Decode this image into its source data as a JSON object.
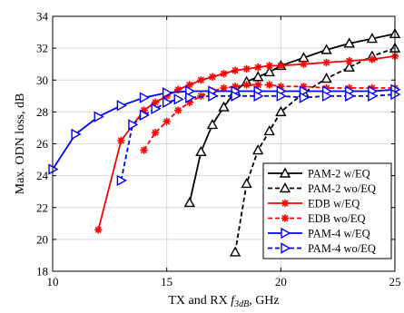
{
  "chart_data": {
    "type": "line",
    "title": "",
    "xlabel": {
      "main": "TX and RX ",
      "italic": "f",
      "sub": "3dB",
      "suffix": ", GHz"
    },
    "ylabel": "Max. ODN loss, dB",
    "xlim": [
      10,
      25
    ],
    "ylim": [
      18,
      34
    ],
    "xticks": [
      10,
      15,
      20,
      25
    ],
    "yticks": [
      18,
      20,
      22,
      24,
      26,
      28,
      30,
      32,
      34
    ],
    "xtick_labels": [
      "10",
      "15",
      "20",
      "25"
    ],
    "ytick_labels": [
      "18",
      "20",
      "22",
      "24",
      "26",
      "28",
      "30",
      "32",
      "34"
    ],
    "grid": true,
    "legend_position": "bottom-right",
    "series": [
      {
        "name": "PAM-2 w/EQ",
        "color": "#000000",
        "dash": "solid",
        "marker": "triangle-up",
        "x": [
          16,
          16.5,
          17,
          17.5,
          18,
          18.5,
          19,
          19.5,
          20,
          21,
          22,
          23,
          24,
          25
        ],
        "y": [
          22.3,
          25.5,
          27.2,
          28.3,
          29.3,
          29.9,
          30.2,
          30.5,
          30.9,
          31.4,
          31.9,
          32.3,
          32.6,
          32.9
        ]
      },
      {
        "name": "PAM-2 wo/EQ",
        "color": "#000000",
        "dash": "dashed",
        "marker": "triangle-up",
        "x": [
          18,
          18.5,
          19,
          19.5,
          20,
          21,
          22,
          23,
          24,
          25
        ],
        "y": [
          19.2,
          23.5,
          25.6,
          26.8,
          28.0,
          29.2,
          30.1,
          30.8,
          31.5,
          32.0
        ]
      },
      {
        "name": "EDB w/EQ",
        "color": "#ff0000",
        "dash": "solid",
        "marker": "asterisk",
        "x": [
          12,
          13,
          14,
          14.5,
          15,
          15.5,
          16,
          16.5,
          17,
          17.5,
          18,
          18.5,
          19,
          19.5,
          20,
          21,
          22,
          23,
          24,
          25
        ],
        "y": [
          20.6,
          26.2,
          28.1,
          28.6,
          29.0,
          29.4,
          29.7,
          30.0,
          30.2,
          30.4,
          30.6,
          30.7,
          30.8,
          30.9,
          30.9,
          31.0,
          31.1,
          31.2,
          31.3,
          31.5
        ]
      },
      {
        "name": "EDB wo/EQ",
        "color": "#ff0000",
        "dash": "dashed",
        "marker": "asterisk",
        "x": [
          14,
          14.5,
          15,
          15.5,
          16,
          16.5,
          17,
          17.5,
          18,
          18.5,
          19,
          19.5,
          20,
          21,
          22,
          23,
          24,
          25
        ],
        "y": [
          25.6,
          26.7,
          27.4,
          28.1,
          28.6,
          29.0,
          29.3,
          29.5,
          29.6,
          29.7,
          29.7,
          29.7,
          29.6,
          29.6,
          29.5,
          29.5,
          29.5,
          29.5
        ]
      },
      {
        "name": "PAM-4 w/EQ",
        "color": "#0000ff",
        "dash": "solid",
        "marker": "triangle-right",
        "x": [
          10,
          11,
          12,
          13,
          14,
          15,
          16,
          17,
          18,
          19,
          20,
          21,
          22,
          23,
          24,
          25
        ],
        "y": [
          24.4,
          26.6,
          27.7,
          28.4,
          28.9,
          29.2,
          29.3,
          29.3,
          29.3,
          29.3,
          29.3,
          29.3,
          29.3,
          29.3,
          29.3,
          29.4
        ]
      },
      {
        "name": "PAM-4 wo/EQ",
        "color": "#0000ff",
        "dash": "dashed",
        "marker": "triangle-right",
        "x": [
          13,
          13.5,
          14,
          14.5,
          15,
          15.5,
          16,
          17,
          18,
          19,
          20,
          21,
          22,
          23,
          24,
          25
        ],
        "y": [
          23.7,
          27.2,
          27.8,
          28.2,
          28.6,
          28.8,
          28.9,
          29.0,
          29.0,
          29.0,
          29.0,
          28.9,
          29.0,
          29.0,
          29.0,
          29.1
        ]
      }
    ]
  }
}
